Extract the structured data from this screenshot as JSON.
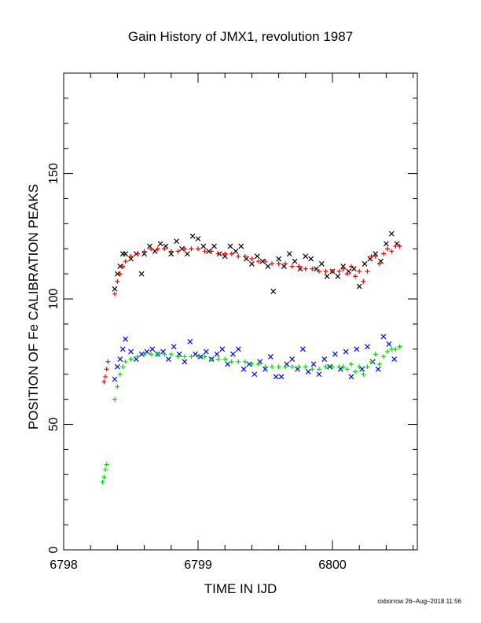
{
  "chart_data": {
    "type": "scatter",
    "title": "Gain History of JMX1, revolution 1987",
    "xlabel": "TIME IN IJD",
    "ylabel": "POSITION OF Fe CALIBRATION PEAKS",
    "xlim": [
      6798.0,
      6800.7
    ],
    "ylim": [
      0,
      190
    ],
    "x_ticks": [
      6798,
      6799,
      6800
    ],
    "x_tick_labels": [
      "6798",
      "6799",
      "6800"
    ],
    "y_ticks": [
      0,
      50,
      100,
      150
    ],
    "y_tick_labels": [
      "0",
      "50",
      "100",
      "150"
    ],
    "grid": false,
    "legend": "none",
    "footer": "oxborrow 26–Aug–2018 11:56",
    "series": [
      {
        "marker": "x",
        "color": "#000000",
        "x": [
          6798.38,
          6798.4,
          6798.42,
          6798.44,
          6798.46,
          6798.5,
          6798.54,
          6798.58,
          6798.6,
          6798.64,
          6798.68,
          6798.72,
          6798.76,
          6798.8,
          6798.84,
          6798.88,
          6798.92,
          6798.96,
          6799.0,
          6799.04,
          6799.08,
          6799.12,
          6799.16,
          6799.2,
          6799.24,
          6799.28,
          6799.32,
          6799.36,
          6799.4,
          6799.44,
          6799.48,
          6799.52,
          6799.56,
          6799.6,
          6799.64,
          6799.68,
          6799.72,
          6799.76,
          6799.8,
          6799.84,
          6799.88,
          6799.92,
          6799.96,
          6800.0,
          6800.04,
          6800.08,
          6800.12,
          6800.16,
          6800.2,
          6800.24,
          6800.28,
          6800.32,
          6800.36,
          6800.4,
          6800.44,
          6800.48
        ],
        "y": [
          104,
          110,
          113,
          118,
          118,
          116,
          118,
          110,
          118,
          121,
          119,
          122,
          121,
          118,
          123,
          120,
          118,
          125,
          124,
          121,
          119,
          121,
          118,
          117,
          121,
          119,
          121,
          116,
          114,
          117,
          115,
          113,
          103,
          116,
          113,
          118,
          115,
          112,
          117,
          116,
          112,
          114,
          109,
          111,
          109,
          113,
          111,
          112,
          105,
          114,
          116,
          118,
          115,
          122,
          126,
          122
        ]
      },
      {
        "marker": "x",
        "color": "#0000ff",
        "x": [
          6798.38,
          6798.4,
          6798.42,
          6798.44,
          6798.46,
          6798.5,
          6798.54,
          6798.58,
          6798.62,
          6798.66,
          6798.7,
          6798.74,
          6798.78,
          6798.82,
          6798.86,
          6798.9,
          6798.94,
          6798.98,
          6799.02,
          6799.06,
          6799.1,
          6799.14,
          6799.18,
          6799.22,
          6799.26,
          6799.3,
          6799.34,
          6799.38,
          6799.42,
          6799.46,
          6799.5,
          6799.54,
          6799.58,
          6799.62,
          6799.66,
          6799.7,
          6799.74,
          6799.78,
          6799.82,
          6799.86,
          6799.9,
          6799.94,
          6799.98,
          6800.02,
          6800.06,
          6800.1,
          6800.14,
          6800.18,
          6800.22,
          6800.26,
          6800.3,
          6800.34,
          6800.38,
          6800.42,
          6800.46
        ],
        "y": [
          68,
          73,
          76,
          80,
          84,
          79,
          76,
          78,
          79,
          80,
          78,
          79,
          76,
          81,
          78,
          75,
          83,
          78,
          77,
          79,
          76,
          78,
          80,
          74,
          78,
          80,
          72,
          74,
          70,
          75,
          72,
          77,
          69,
          69,
          74,
          76,
          72,
          80,
          71,
          74,
          70,
          76,
          73,
          78,
          72,
          79,
          69,
          80,
          72,
          81,
          75,
          72,
          85,
          82,
          76
        ]
      },
      {
        "marker": "+",
        "color": "#ff0000",
        "x": [
          6798.3,
          6798.31,
          6798.32,
          6798.33,
          6798.38,
          6798.4,
          6798.42,
          6798.44,
          6798.46,
          6798.5,
          6798.55,
          6798.6,
          6798.65,
          6798.7,
          6798.75,
          6798.8,
          6798.85,
          6798.9,
          6798.95,
          6799.0,
          6799.05,
          6799.1,
          6799.15,
          6799.2,
          6799.25,
          6799.3,
          6799.35,
          6799.4,
          6799.45,
          6799.5,
          6799.55,
          6799.6,
          6799.65,
          6799.7,
          6799.75,
          6799.8,
          6799.85,
          6799.9,
          6799.95,
          6800.0,
          6800.05,
          6800.08,
          6800.11,
          6800.14,
          6800.17,
          6800.2,
          6800.23,
          6800.26,
          6800.29,
          6800.32,
          6800.35,
          6800.38,
          6800.41,
          6800.44,
          6800.47,
          6800.5
        ],
        "y": [
          67,
          69,
          72,
          75,
          102,
          107,
          110,
          113,
          115,
          117,
          118,
          119,
          120,
          120,
          120,
          119,
          119,
          120,
          120,
          120,
          119,
          119,
          118,
          118,
          118,
          117,
          117,
          116,
          115,
          115,
          114,
          114,
          114,
          113,
          113,
          112,
          112,
          111,
          111,
          111,
          111,
          112,
          110,
          113,
          109,
          111,
          107,
          111,
          117,
          117,
          114,
          118,
          120,
          119,
          121,
          121
        ]
      },
      {
        "marker": "+",
        "color": "#00dd00",
        "x": [
          6798.29,
          6798.3,
          6798.31,
          6798.32,
          6798.38,
          6798.4,
          6798.42,
          6798.44,
          6798.46,
          6798.5,
          6798.55,
          6798.6,
          6798.65,
          6798.7,
          6798.75,
          6798.8,
          6798.85,
          6798.9,
          6798.95,
          6799.0,
          6799.05,
          6799.1,
          6799.15,
          6799.2,
          6799.25,
          6799.3,
          6799.35,
          6799.4,
          6799.45,
          6799.5,
          6799.55,
          6799.6,
          6799.65,
          6799.7,
          6799.75,
          6799.8,
          6799.85,
          6799.9,
          6799.95,
          6800.0,
          6800.05,
          6800.08,
          6800.11,
          6800.14,
          6800.17,
          6800.2,
          6800.23,
          6800.26,
          6800.29,
          6800.32,
          6800.35,
          6800.38,
          6800.41,
          6800.44,
          6800.47,
          6800.5
        ],
        "y": [
          27,
          29,
          32,
          34,
          60,
          65,
          70,
          73,
          75,
          76,
          77,
          78,
          78,
          78,
          78,
          78,
          77,
          77,
          77,
          77,
          77,
          76,
          76,
          76,
          75,
          75,
          75,
          74,
          74,
          73,
          73,
          73,
          73,
          73,
          73,
          73,
          72,
          72,
          73,
          73,
          73,
          73,
          72,
          74,
          71,
          73,
          70,
          73,
          75,
          78,
          74,
          77,
          79,
          80,
          80,
          81
        ]
      }
    ]
  }
}
